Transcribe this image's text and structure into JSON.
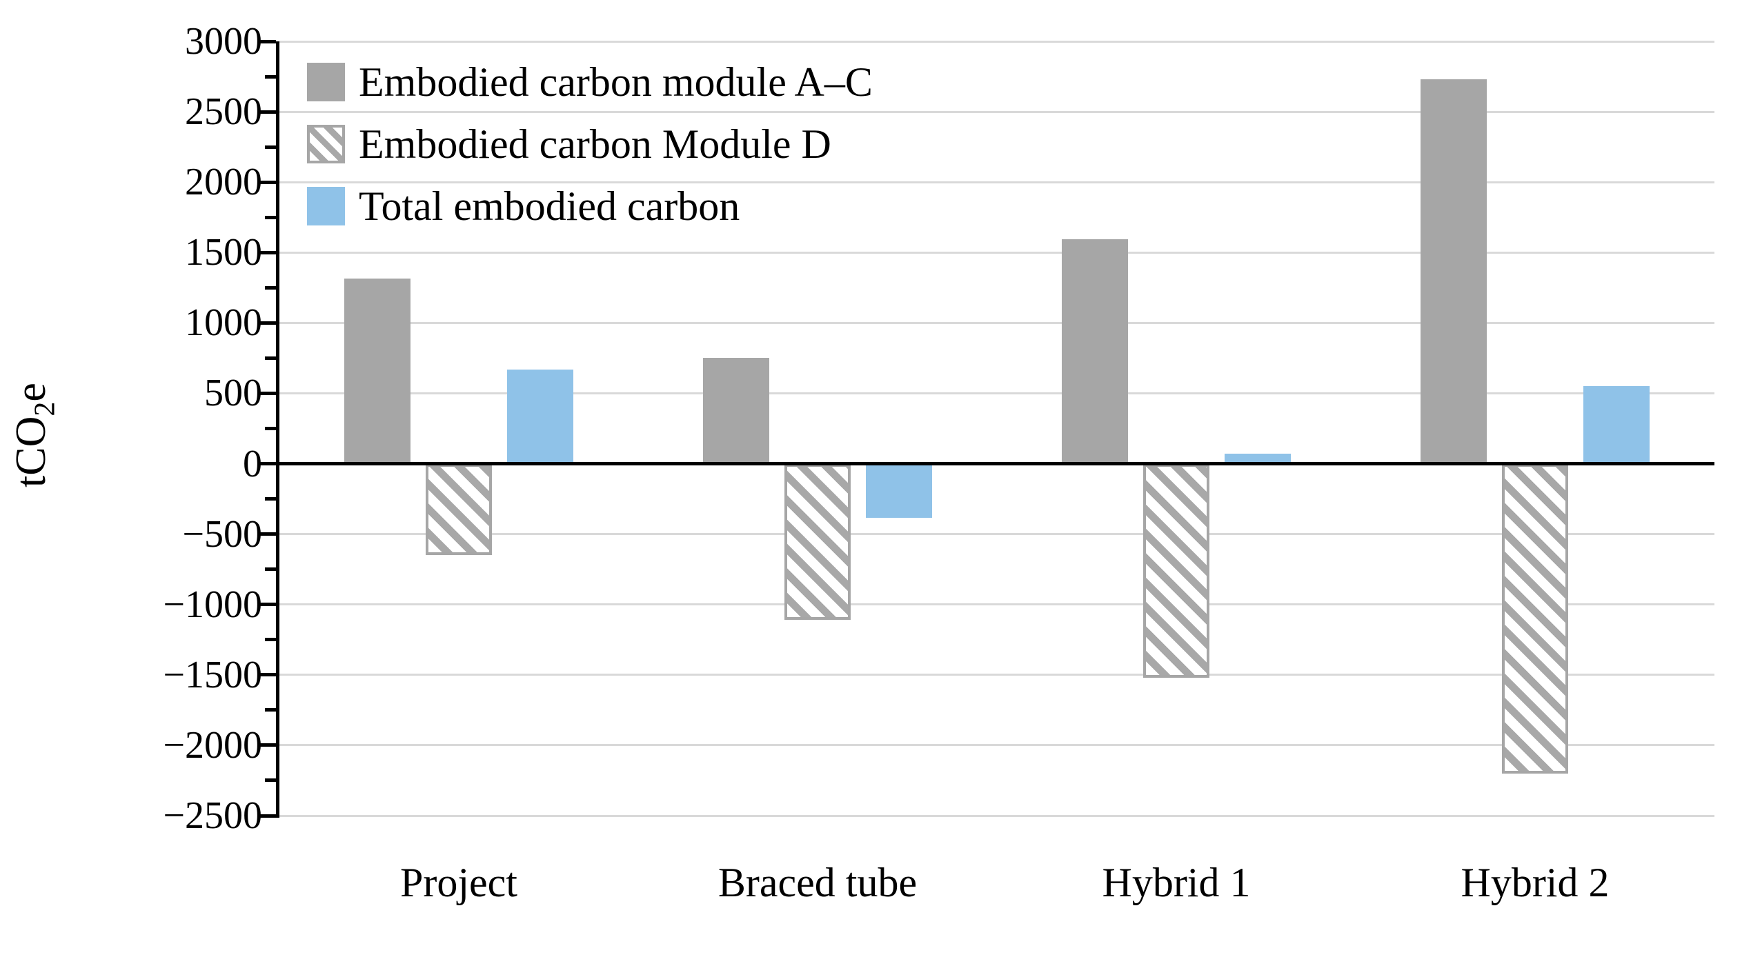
{
  "figure": {
    "ylabel": {
      "pre": "tCO",
      "sub": "2",
      "post": "e"
    },
    "legend": [
      {
        "label": "Embodied carbon module A–C",
        "swatch": "solid",
        "color": "#A6A6A6"
      },
      {
        "label": "Embodied carbon Module D",
        "swatch": "hatch",
        "color": "#A8A8A8"
      },
      {
        "label": "Total embodied carbon",
        "swatch": "solid",
        "color": "#8FC2E8"
      }
    ]
  },
  "chart_data": {
    "type": "bar",
    "title": "",
    "xlabel": "",
    "ylabel": "tCO2e",
    "categories": [
      "Project",
      "Braced tube",
      "Hybrid 1",
      "Hybrid 2"
    ],
    "series": [
      {
        "name": "Embodied carbon module A–C",
        "style": "solid",
        "color": "#A6A6A6",
        "values": [
          1315,
          750,
          1595,
          2730
        ]
      },
      {
        "name": "Embodied carbon Module D",
        "style": "hatched",
        "color": "#A8A8A8",
        "hatch_background": "#FFFFFF",
        "border_color": "#A6A6A6",
        "values": [
          -650,
          -1110,
          -1520,
          -2200
        ]
      },
      {
        "name": "Total embodied carbon",
        "style": "solid",
        "color": "#8FC2E8",
        "values": [
          670,
          -385,
          70,
          550
        ]
      }
    ],
    "ylim": [
      -2500,
      3000
    ],
    "y_major_step": 500,
    "y_minor_step": 250,
    "y_ticks": [
      3000,
      2500,
      2000,
      1500,
      1000,
      500,
      0,
      -500,
      -1000,
      -1500,
      -2000,
      -2500
    ],
    "grid": "horizontal",
    "gridline_color": "#D9D9D9",
    "zero_line_color": "#000000",
    "axis_color": "#000000",
    "legend_position": "top-left-inside",
    "minus_sign": "−"
  }
}
